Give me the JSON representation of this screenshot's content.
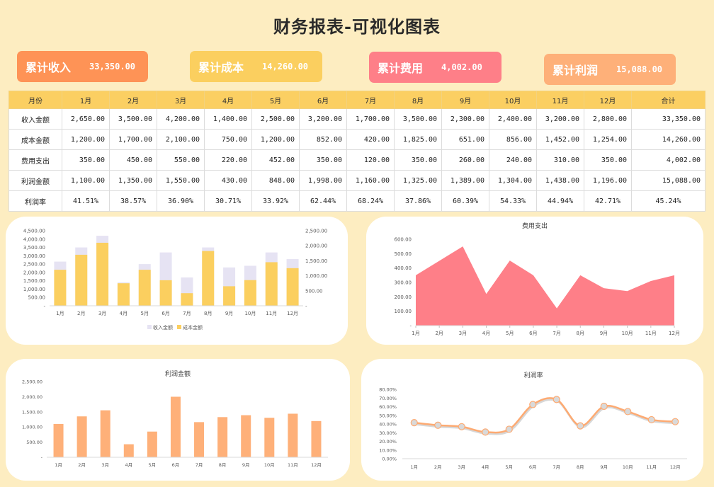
{
  "page": {
    "title": "财务报表-可视化图表"
  },
  "kpis": [
    {
      "label": "累计收入",
      "value": "33,350.00",
      "color": "#fe9356"
    },
    {
      "label": "累计成本",
      "value": "14,260.00",
      "color": "#fbcf5f"
    },
    {
      "label": "累计费用",
      "value": "4,002.00",
      "color": "#fe7f88"
    },
    {
      "label": "累计利润",
      "value": "15,088.00",
      "color": "#feb079"
    }
  ],
  "table": {
    "headers": [
      "月份",
      "1月",
      "2月",
      "3月",
      "4月",
      "5月",
      "6月",
      "7月",
      "8月",
      "9月",
      "10月",
      "11月",
      "12月",
      "合计"
    ],
    "rows": [
      {
        "label": "收入金额",
        "values": [
          "2,650.00",
          "3,500.00",
          "4,200.00",
          "1,400.00",
          "2,500.00",
          "3,200.00",
          "1,700.00",
          "3,500.00",
          "2,300.00",
          "2,400.00",
          "3,200.00",
          "2,800.00",
          "33,350.00"
        ]
      },
      {
        "label": "成本金额",
        "values": [
          "1,200.00",
          "1,700.00",
          "2,100.00",
          "750.00",
          "1,200.00",
          "852.00",
          "420.00",
          "1,825.00",
          "651.00",
          "856.00",
          "1,452.00",
          "1,254.00",
          "14,260.00"
        ]
      },
      {
        "label": "费用支出",
        "values": [
          "350.00",
          "450.00",
          "550.00",
          "220.00",
          "452.00",
          "350.00",
          "120.00",
          "350.00",
          "260.00",
          "240.00",
          "310.00",
          "350.00",
          "4,002.00"
        ]
      },
      {
        "label": "利润金额",
        "values": [
          "1,100.00",
          "1,350.00",
          "1,550.00",
          "430.00",
          "848.00",
          "1,998.00",
          "1,160.00",
          "1,325.00",
          "1,389.00",
          "1,304.00",
          "1,438.00",
          "1,196.00",
          "15,088.00"
        ]
      },
      {
        "label": "利润率",
        "values": [
          "41.51%",
          "38.57%",
          "36.90%",
          "30.71%",
          "33.92%",
          "62.44%",
          "68.24%",
          "37.86%",
          "60.39%",
          "54.33%",
          "44.94%",
          "42.71%",
          "45.24%"
        ]
      }
    ]
  },
  "chart_data": [
    {
      "type": "bar",
      "title": "",
      "categories": [
        "1月",
        "2月",
        "3月",
        "4月",
        "5月",
        "6月",
        "7月",
        "8月",
        "9月",
        "10月",
        "11月",
        "12月"
      ],
      "series": [
        {
          "name": "收入金额",
          "axis": "left",
          "color": "#e6e3f3",
          "values": [
            2650,
            3500,
            4200,
            1400,
            2500,
            3200,
            1700,
            3500,
            2300,
            2400,
            3200,
            2800
          ]
        },
        {
          "name": "成本金额",
          "axis": "right",
          "color": "#fbcf5f",
          "values": [
            1200,
            1700,
            2100,
            750,
            1200,
            852,
            420,
            1825,
            651,
            856,
            1452,
            1254
          ]
        }
      ],
      "ylim_left": [
        0,
        4500
      ],
      "yticks_left": [
        "-",
        "500.00",
        "1,000.00",
        "1,500.00",
        "2,000.00",
        "2,500.00",
        "3,000.00",
        "3,500.00",
        "4,000.00",
        "4,500.00"
      ],
      "ylim_right": [
        0,
        2500
      ],
      "yticks_right": [
        "-",
        "500.00",
        "1,000.00",
        "1,500.00",
        "2,000.00",
        "2,500.00"
      ],
      "legend": [
        "收入金额",
        "成本金额"
      ],
      "legend_position": "bottom",
      "grid": false
    },
    {
      "type": "area",
      "title": "费用支出",
      "categories": [
        "1月",
        "2月",
        "3月",
        "4月",
        "5月",
        "6月",
        "7月",
        "8月",
        "9月",
        "10月",
        "11月",
        "12月"
      ],
      "values": [
        350,
        450,
        550,
        220,
        452,
        350,
        120,
        350,
        260,
        240,
        310,
        350
      ],
      "color": "#fe7f88",
      "ylim": [
        0,
        600
      ],
      "yticks": [
        "-",
        "100.00",
        "200.00",
        "300.00",
        "400.00",
        "500.00",
        "600.00"
      ],
      "grid": false
    },
    {
      "type": "bar",
      "title": "利润金额",
      "categories": [
        "1月",
        "2月",
        "3月",
        "4月",
        "5月",
        "6月",
        "7月",
        "8月",
        "9月",
        "10月",
        "11月",
        "12月"
      ],
      "values": [
        1100,
        1350,
        1550,
        430,
        848,
        1998,
        1160,
        1325,
        1389,
        1304,
        1438,
        1196
      ],
      "color": "#feb079",
      "ylim": [
        0,
        2500
      ],
      "yticks": [
        "-",
        "500.00",
        "1,000.00",
        "1,500.00",
        "2,000.00",
        "2,500.00"
      ],
      "grid": false
    },
    {
      "type": "line",
      "title": "利润率",
      "categories": [
        "1月",
        "2月",
        "3月",
        "4月",
        "5月",
        "6月",
        "7月",
        "8月",
        "9月",
        "10月",
        "11月",
        "12月"
      ],
      "values": [
        41.51,
        38.57,
        36.9,
        30.71,
        33.92,
        62.44,
        68.24,
        37.86,
        60.39,
        54.33,
        44.94,
        42.71
      ],
      "color": "#fdaa72",
      "marker_color": "#d9d9d9",
      "ylim": [
        0,
        80
      ],
      "yticks": [
        "0.00%",
        "10.00%",
        "20.00%",
        "30.00%",
        "40.00%",
        "50.00%",
        "60.00%",
        "70.00%",
        "80.00%"
      ],
      "smooth": true,
      "grid": false
    }
  ]
}
